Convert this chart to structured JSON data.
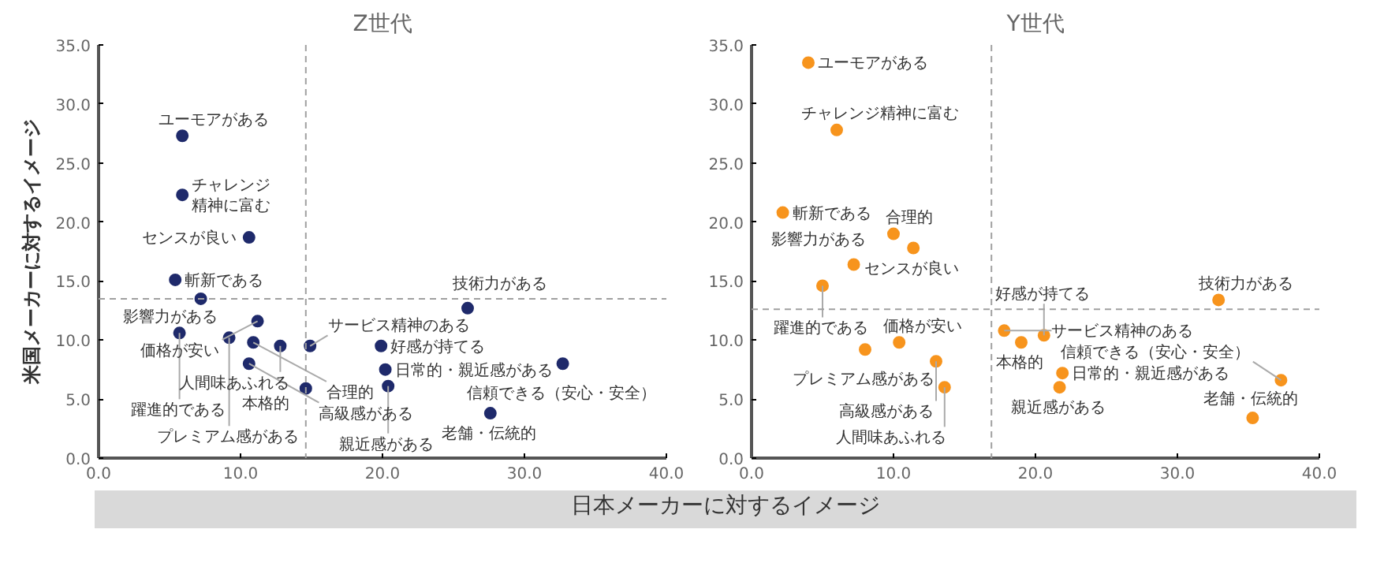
{
  "chart_data": [
    {
      "type": "scatter",
      "title": "Z世代",
      "ylabel": "米国メーカーに対するイメージ",
      "marker": "circle",
      "grid": false,
      "xlim": [
        0,
        40
      ],
      "ylim": [
        0,
        35
      ],
      "xticks": [
        {
          "value": 0,
          "label": "0.0"
        },
        {
          "value": 10,
          "label": "10.0"
        },
        {
          "value": 20,
          "label": "20.0"
        },
        {
          "value": 30,
          "label": "30.0"
        },
        {
          "value": 40,
          "label": "40.0"
        }
      ],
      "yticks": [
        {
          "value": 0,
          "label": "0.0"
        },
        {
          "value": 5,
          "label": "5.0"
        },
        {
          "value": 10,
          "label": "10.0"
        },
        {
          "value": 15,
          "label": "15.0"
        },
        {
          "value": 20,
          "label": "20.0"
        },
        {
          "value": 25,
          "label": "25.0"
        },
        {
          "value": 30,
          "label": "30.0"
        },
        {
          "value": 35,
          "label": "35.0"
        }
      ],
      "ref_lines": [
        {
          "axis": "x",
          "value": 14.6,
          "color": "#a0a0a0",
          "line_style": "dashed"
        },
        {
          "axis": "y",
          "value": 13.5,
          "color": "#a0a0a0",
          "line_style": "dashed"
        }
      ],
      "series": [
        {
          "color": "#1f2a6b",
          "x": [
            5.9,
            5.9,
            10.6,
            5.4,
            7.2,
            11.2,
            12.8,
            14.9,
            26.0,
            5.7,
            9.2,
            10.9,
            10.6,
            14.6,
            19.9,
            20.2,
            20.4,
            32.7,
            27.6
          ],
          "values": [
            27.3,
            22.3,
            18.7,
            15.1,
            13.5,
            11.6,
            9.5,
            9.5,
            12.7,
            10.6,
            10.2,
            9.8,
            8.0,
            5.9,
            9.5,
            7.5,
            6.1,
            8.0,
            3.8
          ]
        }
      ],
      "annotations": [
        {
          "text": "ユーモアがある",
          "x": 5.9,
          "y": 27.3
        },
        {
          "text": "チャレンジ精神に富む",
          "x": 5.9,
          "y": 22.3
        },
        {
          "text": "センスが良い",
          "x": 10.6,
          "y": 18.7
        },
        {
          "text": "斬新である",
          "x": 5.4,
          "y": 15.1
        },
        {
          "text": "影響力がある",
          "x": 7.2,
          "y": 13.5
        },
        {
          "text": "価格が安い",
          "x": 11.2,
          "y": 11.6
        },
        {
          "text": "人間味あふれる",
          "x": 12.8,
          "y": 9.5
        },
        {
          "text": "サービス精神のある",
          "x": 14.9,
          "y": 9.5
        },
        {
          "text": "技術力がある",
          "x": 26.0,
          "y": 12.7
        },
        {
          "text": "躍進的である",
          "x": 5.7,
          "y": 10.6
        },
        {
          "text": "プレミアム感がある",
          "x": 9.2,
          "y": 10.2
        },
        {
          "text": "合理的",
          "x": 10.9,
          "y": 9.8
        },
        {
          "text": "高級感がある",
          "x": 10.6,
          "y": 8.0
        },
        {
          "text": "本格的",
          "x": 14.6,
          "y": 5.9
        },
        {
          "text": "好感が持てる",
          "x": 19.9,
          "y": 9.5
        },
        {
          "text": "日常的・親近感がある",
          "x": 20.2,
          "y": 7.5
        },
        {
          "text": "親近感がある",
          "x": 20.4,
          "y": 6.1
        },
        {
          "text": "信頼できる（安心・安全）",
          "x": 32.7,
          "y": 8.0
        },
        {
          "text": "老舗・伝統的",
          "x": 27.6,
          "y": 3.8
        }
      ]
    },
    {
      "type": "scatter",
      "title": "Y世代",
      "xlabel": "日本メーカーに対するイメージ",
      "marker": "circle",
      "grid": false,
      "xlim": [
        0,
        40
      ],
      "ylim": [
        0,
        35
      ],
      "xticks": [
        {
          "value": 0,
          "label": "0.0"
        },
        {
          "value": 10,
          "label": "10.0"
        },
        {
          "value": 20,
          "label": "20.0"
        },
        {
          "value": 30,
          "label": "30.0"
        },
        {
          "value": 40,
          "label": "40.0"
        }
      ],
      "yticks": [
        {
          "value": 0,
          "label": "0.0"
        },
        {
          "value": 5,
          "label": "5.0"
        },
        {
          "value": 10,
          "label": "10.0"
        },
        {
          "value": 15,
          "label": "15.0"
        },
        {
          "value": 20,
          "label": "20.0"
        },
        {
          "value": 25,
          "label": "25.0"
        },
        {
          "value": 30,
          "label": "30.0"
        },
        {
          "value": 35,
          "label": "35.0"
        }
      ],
      "ref_lines": [
        {
          "axis": "x",
          "value": 16.9,
          "color": "#a0a0a0",
          "line_style": "dashed"
        },
        {
          "axis": "y",
          "value": 12.6,
          "color": "#a0a0a0",
          "line_style": "dashed"
        }
      ],
      "series": [
        {
          "color": "#f7941d",
          "x": [
            4.0,
            6.0,
            2.2,
            10.0,
            11.4,
            7.2,
            5.0,
            32.9,
            17.8,
            19.0,
            20.6,
            10.4,
            8.0,
            13.0,
            13.6,
            21.9,
            21.7,
            37.3,
            35.3
          ],
          "values": [
            33.5,
            27.8,
            20.8,
            19.0,
            17.8,
            16.4,
            14.6,
            13.4,
            10.8,
            9.8,
            10.4,
            9.8,
            9.2,
            8.2,
            6.0,
            7.2,
            6.0,
            6.6,
            3.4
          ]
        }
      ],
      "annotations": [
        {
          "text": "ユーモアがある",
          "x": 4.0,
          "y": 33.5
        },
        {
          "text": "チャレンジ精神に富む",
          "x": 6.0,
          "y": 27.8
        },
        {
          "text": "斬新である",
          "x": 2.2,
          "y": 20.8
        },
        {
          "text": "合理的",
          "x": 10.0,
          "y": 19.0
        },
        {
          "text": "センスが良い",
          "x": 11.4,
          "y": 17.8
        },
        {
          "text": "影響力がある",
          "x": 7.2,
          "y": 16.4
        },
        {
          "text": "躍進的である",
          "x": 5.0,
          "y": 14.6
        },
        {
          "text": "技術力がある",
          "x": 32.9,
          "y": 13.4
        },
        {
          "text": "サービス精神のある",
          "x": 17.8,
          "y": 10.8
        },
        {
          "text": "本格的",
          "x": 19.0,
          "y": 9.8
        },
        {
          "text": "好感が持てる",
          "x": 20.6,
          "y": 10.4
        },
        {
          "text": "価格が安い",
          "x": 10.4,
          "y": 9.8
        },
        {
          "text": "プレミアム感がある",
          "x": 8.0,
          "y": 9.2
        },
        {
          "text": "高級感がある",
          "x": 13.0,
          "y": 8.2
        },
        {
          "text": "人間味あふれる",
          "x": 13.6,
          "y": 6.0
        },
        {
          "text": "日常的・親近感がある",
          "x": 21.9,
          "y": 7.2
        },
        {
          "text": "親近感がある",
          "x": 21.7,
          "y": 6.0
        },
        {
          "text": "信頼できる（安心・安全）",
          "x": 37.3,
          "y": 6.6
        },
        {
          "text": "老舗・伝統的",
          "x": 35.3,
          "y": 3.4
        }
      ]
    }
  ]
}
